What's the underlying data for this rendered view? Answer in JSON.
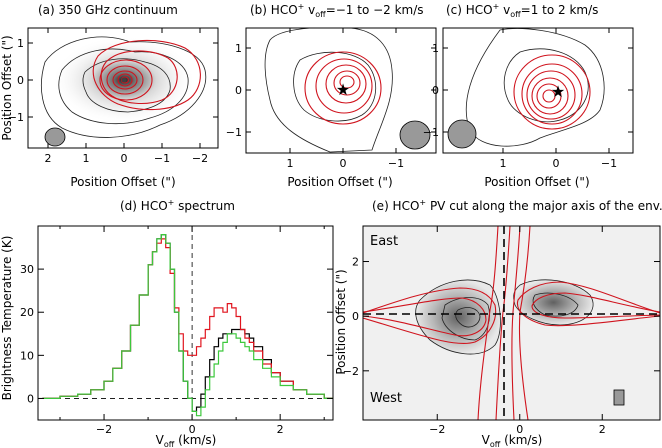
{
  "panels": {
    "a": {
      "title": "(a) 350 GHz continuum",
      "xlabel": "Position Offset (\")",
      "ylabel": "Position Offset (\")",
      "xticks": [
        "2",
        "1",
        "0",
        "−1",
        "−2"
      ],
      "yticks": [
        "1",
        "0",
        "−1"
      ]
    },
    "b": {
      "title_pre": "(b) HCO",
      "title_sup": "+",
      "title_mid": " v",
      "title_sub": "off",
      "title_post": "=−1 to −2 km/s",
      "xlabel": "Position Offset (\")",
      "xticks": [
        "1",
        "0",
        "−1"
      ],
      "yticks": [
        "1",
        "0",
        "−1"
      ]
    },
    "c": {
      "title_pre": "(c) HCO",
      "title_sup": "+",
      "title_mid": " v",
      "title_sub": "off",
      "title_post": "=1 to 2 km/s",
      "xlabel": "Position Offset (\")",
      "xticks": [
        "1",
        "0",
        "−1"
      ],
      "yticks": [
        "1",
        "0",
        "−1"
      ]
    },
    "d": {
      "title_pre": "(d) HCO",
      "title_sup": "+",
      "title_post": " spectrum",
      "ylabel": "Brightness Temperature (K)",
      "xlabel_pre": "V",
      "xlabel_sub": "off",
      "xlabel_post": " (km/s)",
      "xticks": [
        "−2",
        "0",
        "2"
      ],
      "yticks": [
        "0",
        "10",
        "20",
        "30"
      ]
    },
    "e": {
      "title_pre": "(e) HCO",
      "title_sup": "+",
      "title_post": " PV cut along the major axis of the env.",
      "ylabel": "Position Offset (\")",
      "xlabel_pre": "V",
      "xlabel_sub": "off",
      "xlabel_post": " (km/s)",
      "xticks": [
        "−2",
        "0",
        "2"
      ],
      "yticks": [
        "2",
        "0",
        "−2"
      ],
      "label_east": "East",
      "label_west": "West"
    }
  },
  "chart_data": [
    {
      "type": "heatmap",
      "panel": "a",
      "title": "(a) 350 GHz continuum",
      "xlabel": "Position Offset (\")",
      "ylabel": "Position Offset (\")",
      "xlim": [
        2.4,
        -2.4
      ],
      "ylim": [
        -1.6,
        1.3
      ],
      "source_offset": [
        0,
        0
      ]
    },
    {
      "type": "heatmap",
      "panel": "b",
      "title": "(b) HCO+ voff=−1 to −2 km/s",
      "xlabel": "Position Offset (\")",
      "xlim": [
        1.6,
        -1.6
      ],
      "ylim": [
        -1.6,
        1.6
      ],
      "star_offset": [
        0,
        0
      ]
    },
    {
      "type": "heatmap",
      "panel": "c",
      "title": "(c) HCO+ voff=1 to 2 km/s",
      "xlabel": "Position Offset (\")",
      "xlim": [
        1.6,
        -1.6
      ],
      "ylim": [
        -1.6,
        1.6
      ],
      "star_offset": [
        0,
        0
      ]
    },
    {
      "type": "line",
      "panel": "d",
      "title": "(d) HCO+ spectrum",
      "xlabel": "Voff (km/s)",
      "ylabel": "Brightness Temperature (K)",
      "xlim": [
        -3.5,
        3.2
      ],
      "ylim": [
        -5,
        40
      ],
      "x": [
        -3.4,
        -3.0,
        -2.6,
        -2.3,
        -2.0,
        -1.8,
        -1.6,
        -1.4,
        -1.2,
        -1.0,
        -0.9,
        -0.8,
        -0.7,
        -0.6,
        -0.5,
        -0.4,
        -0.3,
        -0.2,
        -0.1,
        0.0,
        0.1,
        0.2,
        0.3,
        0.4,
        0.5,
        0.6,
        0.7,
        0.8,
        0.9,
        1.0,
        1.1,
        1.2,
        1.3,
        1.4,
        1.6,
        1.8,
        2.0,
        2.3,
        2.6,
        3.0
      ],
      "series": [
        {
          "color": "#000000",
          "values": [
            0,
            0.5,
            1,
            2,
            4,
            7,
            11,
            17,
            24,
            31,
            34,
            37,
            38,
            36,
            30,
            20,
            11,
            4,
            0,
            -3,
            -2,
            1,
            5,
            9,
            12,
            14,
            15,
            15,
            16,
            16,
            16,
            15,
            14,
            12,
            9,
            6,
            4,
            2,
            1,
            0
          ]
        },
        {
          "color": "#e0141e",
          "values": [
            0,
            0.5,
            1,
            2,
            4,
            7,
            11,
            17,
            24,
            31,
            34,
            36,
            37,
            35,
            29,
            21,
            15,
            11,
            10,
            10,
            12,
            14,
            16,
            19,
            21,
            21,
            20,
            22,
            21,
            19,
            16,
            14,
            13,
            11,
            8,
            6,
            4,
            2,
            1,
            0
          ]
        },
        {
          "color": "#3cc83c",
          "values": [
            0,
            0.5,
            1,
            2,
            4,
            7,
            11,
            17,
            24,
            31,
            34,
            37,
            38,
            36,
            30,
            20,
            11,
            4,
            0,
            -3,
            -4,
            -2,
            2,
            5,
            8,
            11,
            13,
            15,
            15,
            14,
            13,
            12,
            11,
            9,
            7,
            5,
            3,
            2,
            1,
            0
          ]
        }
      ]
    },
    {
      "type": "heatmap",
      "panel": "e",
      "title": "(e) HCO+ PV cut along the major axis of the env.",
      "xlabel": "Voff (km/s)",
      "ylabel": "Position Offset (\")",
      "xlim": [
        -3.8,
        3.4
      ],
      "ylim": [
        -3.8,
        3.3
      ]
    }
  ],
  "colors": {
    "red_contour": "#d0141e",
    "black_contour": "#222222",
    "green_spectrum": "#3cc83c",
    "beam_fill": "#999999"
  }
}
